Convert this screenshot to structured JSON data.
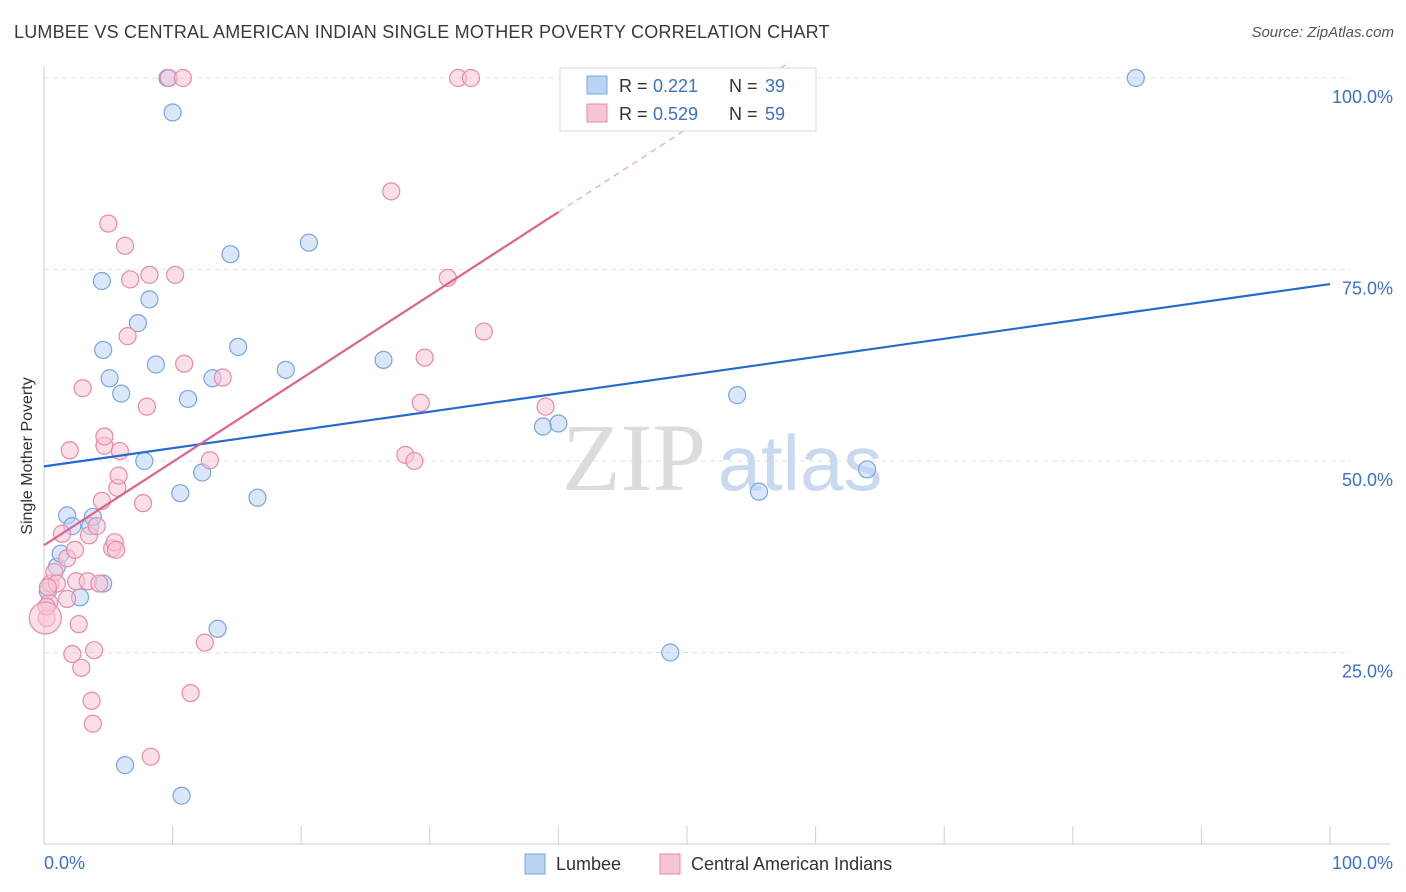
{
  "header": {
    "title": "LUMBEE VS CENTRAL AMERICAN INDIAN SINGLE MOTHER POVERTY CORRELATION CHART",
    "source": "Source: ZipAtlas.com"
  },
  "chart_data": {
    "type": "scatter",
    "title": "LUMBEE VS CENTRAL AMERICAN INDIAN SINGLE MOTHER POVERTY CORRELATION CHART",
    "xlabel": "",
    "ylabel": "Single Mother Poverty",
    "xlim": [
      0,
      100
    ],
    "ylim": [
      0,
      100
    ],
    "x_tick_labels": [
      "0.0%",
      "100.0%"
    ],
    "y_ticks": [
      25,
      50,
      75,
      100
    ],
    "y_tick_labels": [
      "25.0%",
      "50.0%",
      "75.0%",
      "100.0%"
    ],
    "grid": true,
    "watermark": {
      "zip": "ZIP",
      "atlas": "atlas"
    },
    "legend": {
      "placement": "top-center",
      "entries": [
        {
          "r_label": "R =",
          "r_value": "0.221",
          "n_label": "N =",
          "n_value": "39"
        },
        {
          "r_label": "R =",
          "r_value": "0.529",
          "n_label": "N =",
          "n_value": "59"
        }
      ]
    },
    "bottom_legend": [
      "Lumbee",
      "Central American Indians"
    ],
    "colors": {
      "lumbee_fill": "#b9d3f4",
      "lumbee_stroke": "#7aa5de",
      "lumbee_line": "#2469cf",
      "cai_fill": "#f8c5d6",
      "cai_stroke": "#e88aa9",
      "cai_line": "#e0628d",
      "axis_label": "#3b72c4",
      "grid": "#e3e3e3"
    },
    "series": [
      {
        "name": "Lumbee",
        "trend": {
          "x0": 0,
          "y0": 49.3,
          "x1": 100,
          "y1": 73.1
        },
        "points": [
          [
            1.0,
            36.2
          ],
          [
            1.3,
            37.9
          ],
          [
            1.8,
            42.9
          ],
          [
            2.2,
            41.5
          ],
          [
            2.8,
            32.2
          ],
          [
            3.6,
            41.5
          ],
          [
            3.8,
            42.7
          ],
          [
            4.5,
            73.5
          ],
          [
            4.6,
            34.0
          ],
          [
            4.6,
            64.5
          ],
          [
            5.1,
            60.8
          ],
          [
            6.0,
            58.8
          ],
          [
            6.3,
            10.3
          ],
          [
            7.3,
            68.0
          ],
          [
            7.8,
            50.0
          ],
          [
            8.2,
            71.1
          ],
          [
            8.7,
            62.6
          ],
          [
            9.6,
            100.0
          ],
          [
            10.0,
            95.5
          ],
          [
            10.6,
            45.8
          ],
          [
            10.7,
            6.3
          ],
          [
            11.2,
            58.1
          ],
          [
            12.3,
            48.5
          ],
          [
            13.1,
            60.8
          ],
          [
            13.5,
            28.1
          ],
          [
            14.5,
            77.0
          ],
          [
            15.1,
            64.9
          ],
          [
            16.6,
            45.2
          ],
          [
            18.8,
            61.9
          ],
          [
            20.6,
            78.5
          ],
          [
            26.4,
            63.2
          ],
          [
            38.8,
            54.5
          ],
          [
            40.0,
            54.9
          ],
          [
            48.7,
            25.0
          ],
          [
            53.9,
            58.6
          ],
          [
            55.6,
            46.0
          ],
          [
            64.0,
            48.9
          ],
          [
            84.9,
            100.0
          ],
          [
            0.3,
            33.0
          ]
        ]
      },
      {
        "name": "Central American Indians",
        "trend": {
          "x0": 0,
          "y0": 39.0,
          "x1": 40,
          "y1": 82.5
        },
        "points": [
          [
            0.2,
            29.5
          ],
          [
            0.4,
            31.5
          ],
          [
            0.5,
            34.0
          ],
          [
            0.8,
            35.5
          ],
          [
            1.0,
            34.0
          ],
          [
            1.4,
            40.5
          ],
          [
            1.8,
            32.0
          ],
          [
            1.8,
            37.3
          ],
          [
            2.0,
            51.4
          ],
          [
            2.2,
            24.8
          ],
          [
            2.4,
            38.4
          ],
          [
            2.5,
            34.3
          ],
          [
            2.7,
            28.7
          ],
          [
            2.9,
            23.0
          ],
          [
            3.0,
            59.5
          ],
          [
            3.4,
            34.3
          ],
          [
            3.5,
            40.3
          ],
          [
            3.7,
            18.7
          ],
          [
            3.8,
            15.7
          ],
          [
            3.9,
            25.3
          ],
          [
            4.1,
            41.5
          ],
          [
            4.3,
            34.0
          ],
          [
            4.5,
            44.8
          ],
          [
            4.7,
            52.0
          ],
          [
            4.7,
            53.2
          ],
          [
            5.0,
            81.0
          ],
          [
            5.3,
            38.6
          ],
          [
            5.5,
            39.4
          ],
          [
            5.6,
            38.4
          ],
          [
            5.7,
            46.5
          ],
          [
            5.8,
            48.1
          ],
          [
            5.9,
            51.3
          ],
          [
            6.3,
            78.1
          ],
          [
            6.5,
            66.3
          ],
          [
            6.7,
            73.7
          ],
          [
            7.7,
            44.5
          ],
          [
            8.0,
            57.1
          ],
          [
            8.2,
            74.3
          ],
          [
            8.3,
            11.4
          ],
          [
            9.7,
            100.0
          ],
          [
            10.2,
            74.3
          ],
          [
            10.8,
            100.0
          ],
          [
            10.9,
            62.7
          ],
          [
            11.4,
            19.7
          ],
          [
            12.5,
            26.3
          ],
          [
            12.9,
            50.1
          ],
          [
            13.9,
            60.9
          ],
          [
            27.0,
            85.2
          ],
          [
            28.1,
            50.8
          ],
          [
            28.8,
            50.0
          ],
          [
            29.3,
            57.6
          ],
          [
            29.6,
            63.5
          ],
          [
            31.4,
            73.9
          ],
          [
            32.2,
            100.0
          ],
          [
            33.2,
            100.0
          ],
          [
            34.2,
            66.9
          ],
          [
            39.0,
            57.1
          ],
          [
            0.2,
            31.0
          ],
          [
            0.3,
            33.5
          ]
        ]
      }
    ]
  }
}
